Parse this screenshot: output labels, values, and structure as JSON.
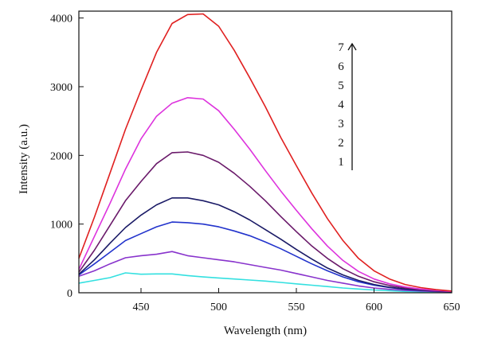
{
  "chart_data": {
    "type": "line",
    "xlabel": "Wavelength (nm)",
    "ylabel": "Intensity (a.u.)",
    "xlim": [
      410,
      650
    ],
    "ylim": [
      0,
      4100
    ],
    "xticks": [
      450,
      500,
      550,
      600,
      650
    ],
    "yticks": [
      0,
      1000,
      2000,
      3000,
      4000
    ],
    "grid": false,
    "legend": {
      "placement": "top-right",
      "labels": [
        "7",
        "6",
        "5",
        "4",
        "3",
        "2",
        "1"
      ],
      "arrow_direction": "up"
    },
    "x": [
      410,
      420,
      430,
      440,
      450,
      460,
      470,
      480,
      490,
      500,
      510,
      520,
      530,
      540,
      550,
      560,
      570,
      580,
      590,
      600,
      610,
      620,
      630,
      640,
      650
    ],
    "series": [
      {
        "name": "1",
        "color": "#33e0e0",
        "values": [
          140,
          180,
          220,
          290,
          270,
          275,
          275,
          250,
          230,
          215,
          200,
          185,
          170,
          150,
          130,
          110,
          90,
          70,
          55,
          40,
          30,
          20,
          15,
          10,
          8
        ]
      },
      {
        "name": "2",
        "color": "#8833cc",
        "values": [
          240,
          320,
          420,
          510,
          540,
          560,
          600,
          540,
          510,
          480,
          450,
          410,
          370,
          330,
          280,
          230,
          180,
          140,
          100,
          70,
          50,
          35,
          25,
          18,
          12
        ]
      },
      {
        "name": "3",
        "color": "#2233cc",
        "values": [
          260,
          420,
          590,
          760,
          860,
          960,
          1030,
          1020,
          1000,
          960,
          900,
          830,
          740,
          640,
          530,
          420,
          320,
          230,
          160,
          110,
          75,
          50,
          35,
          25,
          15
        ]
      },
      {
        "name": "4",
        "color": "#1a1a66",
        "values": [
          270,
          480,
          720,
          950,
          1130,
          1280,
          1380,
          1380,
          1340,
          1280,
          1180,
          1060,
          920,
          780,
          630,
          490,
          360,
          260,
          180,
          120,
          80,
          55,
          38,
          25,
          15
        ]
      },
      {
        "name": "5",
        "color": "#6a1a6a",
        "values": [
          300,
          620,
          980,
          1340,
          1620,
          1880,
          2040,
          2050,
          2000,
          1900,
          1740,
          1550,
          1340,
          1110,
          890,
          680,
          500,
          350,
          240,
          160,
          105,
          70,
          45,
          30,
          20
        ]
      },
      {
        "name": "6",
        "color": "#dd33dd",
        "values": [
          340,
          820,
          1300,
          1800,
          2240,
          2570,
          2760,
          2840,
          2820,
          2650,
          2380,
          2090,
          1780,
          1480,
          1200,
          930,
          680,
          470,
          310,
          200,
          130,
          85,
          55,
          35,
          20
        ]
      },
      {
        "name": "7",
        "color": "#e02020",
        "values": [
          500,
          1100,
          1740,
          2380,
          2950,
          3500,
          3920,
          4050,
          4060,
          3880,
          3530,
          3130,
          2710,
          2260,
          1850,
          1450,
          1080,
          760,
          500,
          320,
          200,
          120,
          75,
          45,
          25
        ]
      }
    ]
  }
}
